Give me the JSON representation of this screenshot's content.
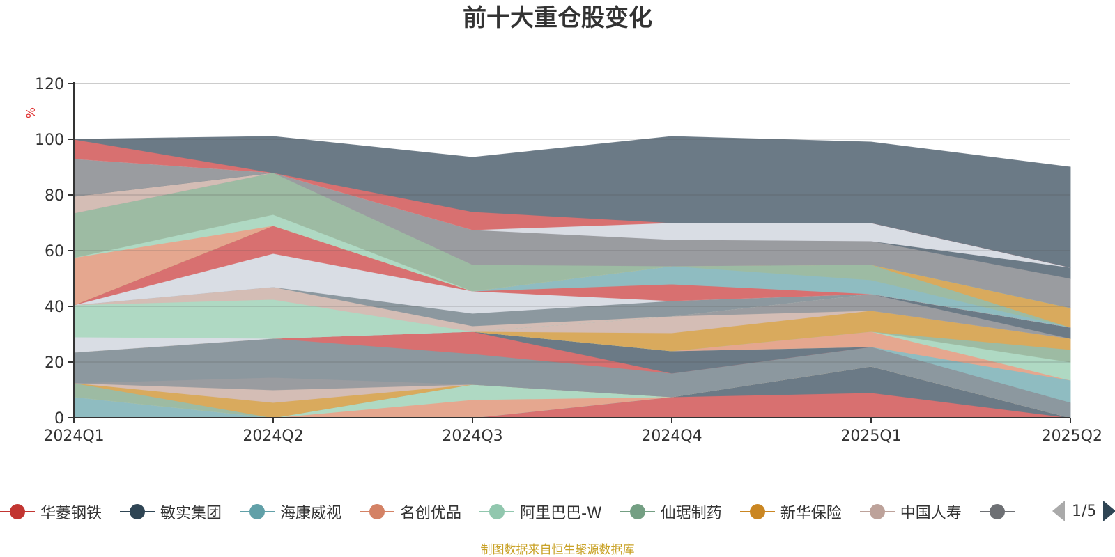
{
  "chart_data": {
    "type": "area",
    "stacked": true,
    "title": "前十大重仓股变化",
    "ylabel": "%",
    "xlabel": "",
    "ylim": [
      0,
      120
    ],
    "yticks": [
      0,
      20,
      40,
      60,
      80,
      100,
      120
    ],
    "grid": true,
    "legend_position": "bottom",
    "categories": [
      "2024Q1",
      "2024Q2",
      "2024Q3",
      "2024Q4",
      "2025Q1",
      "2025Q2"
    ],
    "series": [
      {
        "color": "#d87070",
        "values": [
          0.0,
          0.0,
          0.0,
          7.5,
          9.0,
          0.0
        ]
      },
      {
        "color": "#6b7a86",
        "values": [
          0.0,
          0.0,
          0.0,
          0.0,
          9.5,
          0.0
        ]
      },
      {
        "color": "#8fbcc1",
        "values": [
          7.5,
          0.0,
          0.0,
          0.0,
          0.0,
          0.0
        ]
      },
      {
        "color": "#e5a78f",
        "values": [
          0.0,
          0.0,
          6.5,
          0.0,
          0.0,
          0.0
        ]
      },
      {
        "color": "#afd9c3",
        "values": [
          0.0,
          0.0,
          5.5,
          0.0,
          0.0,
          0.0
        ]
      },
      {
        "color": "#9dbba3",
        "values": [
          5.0,
          0.0,
          0.0,
          0.0,
          0.0,
          0.0
        ]
      },
      {
        "color": "#d9aa5d",
        "values": [
          0.0,
          5.5,
          0.0,
          0.0,
          0.0,
          0.0
        ]
      },
      {
        "color": "#d4bdb5",
        "values": [
          0.0,
          4.5,
          0.0,
          0.0,
          0.0,
          0.0
        ]
      },
      {
        "color": "#9a9ca0",
        "values": [
          0.0,
          4.5,
          0.0,
          0.0,
          0.0,
          0.0
        ]
      },
      {
        "color": "#8c989f",
        "values": [
          11.0,
          14.0,
          11.0,
          8.5,
          7.0,
          5.5
        ]
      },
      {
        "color": "#d87070",
        "values": [
          0.0,
          0.0,
          8.0,
          0.0,
          0.0,
          0.0
        ]
      },
      {
        "color": "#6b7a86",
        "values": [
          0.0,
          0.0,
          0.0,
          8.0,
          0.0,
          0.0
        ]
      },
      {
        "color": "#8fbcc1",
        "values": [
          0.0,
          0.0,
          0.0,
          0.0,
          0.0,
          8.0
        ]
      },
      {
        "color": "#e5a78f",
        "values": [
          0.0,
          0.0,
          0.0,
          0.0,
          5.5,
          0.0
        ]
      },
      {
        "color": "#afd9c3",
        "values": [
          0.0,
          0.0,
          0.0,
          0.0,
          0.0,
          6.5
        ]
      },
      {
        "color": "#9dbba3",
        "values": [
          0.0,
          0.0,
          0.0,
          0.0,
          0.0,
          4.5
        ]
      },
      {
        "color": "#d9aa5d",
        "values": [
          0.0,
          0.0,
          0.0,
          6.5,
          7.5,
          4.0
        ]
      },
      {
        "color": "#d4bdb5",
        "values": [
          0.0,
          0.0,
          0.0,
          6.0,
          0.0,
          0.0
        ]
      },
      {
        "color": "#9a9ca0",
        "values": [
          0.0,
          0.0,
          0.0,
          0.0,
          6.0,
          0.0
        ]
      },
      {
        "color": "#6b7a86",
        "values": [
          0.0,
          0.0,
          0.0,
          0.0,
          0.0,
          4.0
        ]
      },
      {
        "color": "#d9dde4",
        "values": [
          5.5,
          0.0,
          0.0,
          0.0,
          0.0,
          0.0
        ]
      },
      {
        "color": "#afd9c3",
        "values": [
          11.5,
          14.0,
          0.0,
          0.0,
          0.0,
          0.0
        ]
      },
      {
        "color": "#d4bdb5",
        "values": [
          0.0,
          4.5,
          2.0,
          0.0,
          0.0,
          0.0
        ]
      },
      {
        "color": "#8c989f",
        "values": [
          0.0,
          0.0,
          4.5,
          5.5,
          0.0,
          0.0
        ]
      },
      {
        "color": "#d9dde4",
        "values": [
          0.0,
          12.0,
          8.0,
          0.0,
          0.0,
          0.0
        ]
      },
      {
        "color": "#d87070",
        "values": [
          0.0,
          10.0,
          0.0,
          6.0,
          0.0,
          0.0
        ]
      },
      {
        "color": "#8fbcc1",
        "values": [
          0.0,
          0.0,
          0.0,
          6.5,
          5.0,
          0.0
        ]
      },
      {
        "color": "#9dbba3",
        "values": [
          0.0,
          0.0,
          0.0,
          0.0,
          5.5,
          0.0
        ]
      },
      {
        "color": "#d9aa5d",
        "values": [
          0.0,
          0.0,
          0.0,
          0.0,
          0.0,
          7.0
        ]
      },
      {
        "color": "#e5a78f",
        "values": [
          17.0,
          0.0,
          0.0,
          0.0,
          0.0,
          0.0
        ]
      },
      {
        "color": "#afd9c3",
        "values": [
          0.0,
          4.0,
          0.0,
          0.0,
          0.0,
          0.0
        ]
      },
      {
        "color": "#9dbba3",
        "values": [
          16.0,
          15.0,
          9.5,
          0.0,
          0.0,
          0.0
        ]
      },
      {
        "color": "#9a9ca0",
        "values": [
          0.0,
          0.0,
          12.5,
          9.5,
          8.5,
          10.5
        ]
      },
      {
        "color": "#d4bdb5",
        "values": [
          6.0,
          0.0,
          0.0,
          0.0,
          0.0,
          0.0
        ]
      },
      {
        "color": "#6b7a86",
        "values": [
          0.0,
          0.0,
          0.0,
          0.0,
          0.0,
          4.0
        ]
      },
      {
        "color": "#9a9ca0",
        "values": [
          13.5,
          0.0,
          0.0,
          0.0,
          0.0,
          0.0
        ]
      },
      {
        "color": "#d9dde4",
        "values": [
          0.0,
          0.0,
          0.0,
          6.0,
          6.5,
          0.0
        ]
      },
      {
        "color": "#d87070",
        "values": [
          7.0,
          0.0,
          6.5,
          0.0,
          0.0,
          0.0
        ]
      },
      {
        "color": "#6b7a86",
        "values": [
          0.0,
          13.0,
          19.5,
          31.0,
          29.0,
          36.0
        ]
      }
    ]
  },
  "legend": {
    "items": [
      {
        "label": "华菱钢铁",
        "color": "#c23531"
      },
      {
        "label": "敏实集团",
        "color": "#2f4554"
      },
      {
        "label": "海康威视",
        "color": "#61a0a8"
      },
      {
        "label": "名创优品",
        "color": "#d48265"
      },
      {
        "label": "阿里巴巴-W",
        "color": "#91c7ae"
      },
      {
        "label": "仙琚制药",
        "color": "#749f83"
      },
      {
        "label": "新华保险",
        "color": "#ca8622"
      },
      {
        "label": "中国人寿",
        "color": "#bda29a"
      },
      {
        "label": "",
        "color": "#6e7074"
      }
    ],
    "page": "1/5"
  },
  "source_note": "制图数据来自恒生聚源数据库"
}
